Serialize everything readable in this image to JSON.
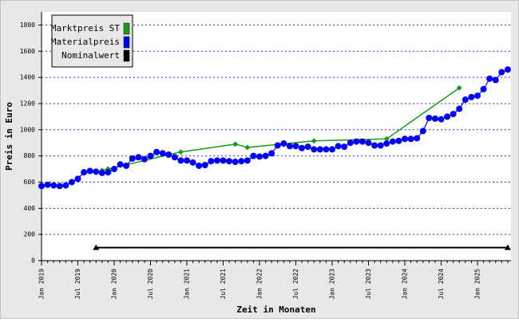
{
  "chart_data": {
    "type": "line",
    "y_label": "Preis in Euro",
    "x_label": "Zeit in Monaten",
    "categories": [
      "Jan 2019",
      null,
      null,
      null,
      null,
      null,
      "Jul 2019",
      null,
      null,
      null,
      null,
      null,
      "Jan 2020",
      null,
      null,
      null,
      null,
      null,
      "Jul 2020",
      null,
      null,
      null,
      null,
      null,
      "Jan 2021",
      null,
      null,
      null,
      null,
      null,
      "Jul 2021",
      null,
      null,
      null,
      null,
      null,
      "Jan 2022",
      null,
      null,
      null,
      null,
      null,
      "Jul 2022",
      null,
      null,
      null,
      null,
      null,
      "Jan 2023",
      null,
      null,
      null,
      null,
      null,
      "Jul 2023",
      null,
      null,
      null,
      null,
      null,
      "Jan 2024",
      null,
      null,
      null,
      null,
      null,
      "Jul 2024",
      null,
      null,
      null,
      null,
      null,
      "Jan 2025",
      null,
      null,
      null,
      null,
      null
    ],
    "series": [
      {
        "name": "Marktpreis ST",
        "color": "#1a9a1a",
        "values": [
          null,
          null,
          null,
          null,
          null,
          null,
          null,
          null,
          null,
          null,
          690,
          700,
          null,
          null,
          null,
          null,
          null,
          null,
          null,
          null,
          null,
          null,
          null,
          830,
          null,
          null,
          null,
          null,
          null,
          null,
          null,
          null,
          890,
          null,
          865,
          null,
          null,
          null,
          null,
          null,
          null,
          null,
          null,
          null,
          null,
          915,
          null,
          null,
          null,
          null,
          null,
          null,
          null,
          null,
          null,
          null,
          null,
          930,
          null,
          null,
          null,
          null,
          null,
          null,
          null,
          null,
          null,
          null,
          null,
          1320,
          null,
          null,
          null,
          null,
          null,
          null,
          null,
          null
        ]
      },
      {
        "name": "Materialpreis",
        "color": "#0000ee",
        "values": [
          570,
          580,
          575,
          570,
          575,
          600,
          625,
          675,
          685,
          680,
          670,
          675,
          700,
          735,
          725,
          780,
          790,
          775,
          800,
          830,
          820,
          810,
          790,
          765,
          765,
          750,
          725,
          730,
          760,
          765,
          765,
          760,
          755,
          760,
          765,
          800,
          795,
          800,
          820,
          880,
          895,
          875,
          875,
          860,
          870,
          850,
          850,
          850,
          850,
          875,
          870,
          900,
          910,
          910,
          900,
          880,
          880,
          895,
          910,
          915,
          930,
          930,
          935,
          990,
          1090,
          1085,
          1080,
          1100,
          1120,
          1160,
          1230,
          1250,
          1260,
          1310,
          1390,
          1380,
          1440,
          1460
        ]
      },
      {
        "name": "Nominalwert",
        "color": "#000000",
        "values": [
          null,
          null,
          null,
          null,
          null,
          null,
          null,
          null,
          null,
          100,
          null,
          null,
          null,
          null,
          null,
          null,
          null,
          null,
          null,
          null,
          null,
          null,
          null,
          null,
          null,
          null,
          null,
          null,
          null,
          null,
          null,
          null,
          null,
          null,
          null,
          null,
          null,
          null,
          null,
          null,
          null,
          null,
          null,
          null,
          null,
          null,
          null,
          null,
          null,
          null,
          null,
          null,
          null,
          null,
          null,
          null,
          null,
          null,
          null,
          null,
          null,
          null,
          null,
          null,
          null,
          null,
          null,
          null,
          null,
          null,
          null,
          null,
          null,
          null,
          null,
          null,
          null,
          100
        ]
      }
    ],
    "ylim": [
      0,
      1900
    ],
    "yticks": [
      0,
      200,
      400,
      600,
      800,
      1000,
      1200,
      1400,
      1600,
      1800
    ],
    "grid": true,
    "legend": "top-left"
  }
}
